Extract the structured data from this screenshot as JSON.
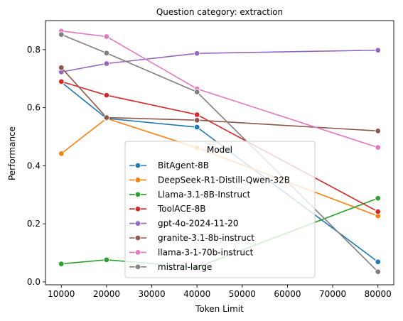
{
  "chart_data": {
    "type": "line",
    "title": "Question category: extraction",
    "xlabel": "Token Limit",
    "ylabel": "Performance",
    "x": [
      10000,
      20000,
      40000,
      80000
    ],
    "xlim": [
      6500,
      83500
    ],
    "ylim": [
      -0.01,
      0.9
    ],
    "xticks": [
      10000,
      20000,
      30000,
      40000,
      50000,
      60000,
      70000,
      80000
    ],
    "yticks": [
      0.0,
      0.2,
      0.4,
      0.6,
      0.8
    ],
    "grid": false,
    "legend": {
      "title": "Model",
      "placement": "lower-center"
    },
    "series": [
      {
        "name": "BitAgent-8B",
        "color": "#1f77b4",
        "values": [
          0.688,
          0.563,
          0.533,
          0.069
        ]
      },
      {
        "name": "DeepSeek-R1-Distill-Qwen-32B",
        "color": "#ff7f0e",
        "values": [
          0.442,
          0.563,
          0.462,
          0.227
        ]
      },
      {
        "name": "Llama-3.1-8B-Instruct",
        "color": "#2ca02c",
        "values": [
          0.062,
          0.076,
          0.05,
          0.288
        ]
      },
      {
        "name": "ToolACE-8B",
        "color": "#d62728",
        "values": [
          0.69,
          0.643,
          0.576,
          0.242
        ]
      },
      {
        "name": "gpt-4o-2024-11-20",
        "color": "#9467bd",
        "values": [
          0.723,
          0.752,
          0.787,
          0.798
        ]
      },
      {
        "name": "granite-3.1-8b-instruct",
        "color": "#8c564b",
        "values": [
          0.738,
          0.566,
          0.557,
          0.52
        ]
      },
      {
        "name": "llama-3-1-70b-instruct",
        "color": "#e377c2",
        "values": [
          0.864,
          0.845,
          0.665,
          0.463
        ]
      },
      {
        "name": "mistral-large",
        "color": "#7f7f7f",
        "values": [
          0.852,
          0.788,
          0.654,
          0.035
        ]
      }
    ]
  }
}
